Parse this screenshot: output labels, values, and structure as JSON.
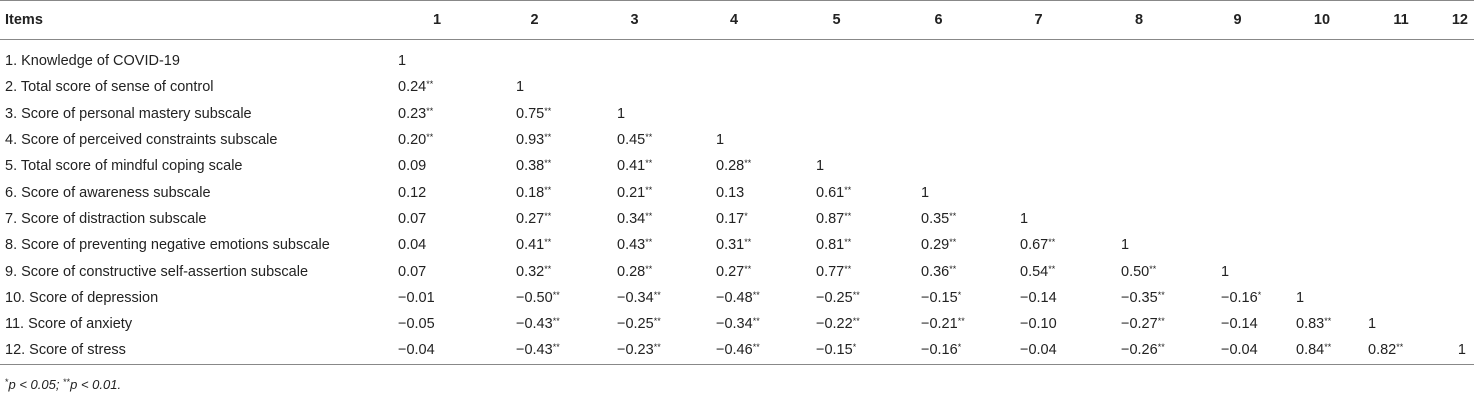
{
  "table": {
    "items_header": "Items",
    "column_headers": [
      "1",
      "2",
      "3",
      "4",
      "5",
      "6",
      "7",
      "8",
      "9",
      "10",
      "11",
      "12"
    ],
    "rows": [
      {
        "label": "1. Knowledge of COVID-19",
        "cells": [
          {
            "v": "1",
            "s": ""
          }
        ]
      },
      {
        "label": "2. Total score of sense of control",
        "cells": [
          {
            "v": "0.24",
            "s": "**"
          },
          {
            "v": "1",
            "s": ""
          }
        ]
      },
      {
        "label": "3. Score of personal mastery subscale",
        "cells": [
          {
            "v": "0.23",
            "s": "**"
          },
          {
            "v": "0.75",
            "s": "**"
          },
          {
            "v": "1",
            "s": ""
          }
        ]
      },
      {
        "label": "4. Score of perceived constraints subscale",
        "cells": [
          {
            "v": "0.20",
            "s": "**"
          },
          {
            "v": "0.93",
            "s": "**"
          },
          {
            "v": "0.45",
            "s": "**"
          },
          {
            "v": "1",
            "s": ""
          }
        ]
      },
      {
        "label": "5. Total score of mindful coping scale",
        "cells": [
          {
            "v": "0.09",
            "s": ""
          },
          {
            "v": "0.38",
            "s": "**"
          },
          {
            "v": "0.41",
            "s": "**"
          },
          {
            "v": "0.28",
            "s": "**"
          },
          {
            "v": "1",
            "s": ""
          }
        ]
      },
      {
        "label": "6. Score of awareness subscale",
        "cells": [
          {
            "v": "0.12",
            "s": ""
          },
          {
            "v": "0.18",
            "s": "**"
          },
          {
            "v": "0.21",
            "s": "**"
          },
          {
            "v": "0.13",
            "s": ""
          },
          {
            "v": "0.61",
            "s": "**"
          },
          {
            "v": "1",
            "s": ""
          }
        ]
      },
      {
        "label": "7. Score of distraction subscale",
        "cells": [
          {
            "v": "0.07",
            "s": ""
          },
          {
            "v": "0.27",
            "s": "**"
          },
          {
            "v": "0.34",
            "s": "**"
          },
          {
            "v": "0.17",
            "s": "*"
          },
          {
            "v": "0.87",
            "s": "**"
          },
          {
            "v": "0.35",
            "s": "**"
          },
          {
            "v": "1",
            "s": ""
          }
        ]
      },
      {
        "label": "8. Score of preventing negative emotions subscale",
        "cells": [
          {
            "v": "0.04",
            "s": ""
          },
          {
            "v": "0.41",
            "s": "**"
          },
          {
            "v": "0.43",
            "s": "**"
          },
          {
            "v": "0.31",
            "s": "**"
          },
          {
            "v": "0.81",
            "s": "**"
          },
          {
            "v": "0.29",
            "s": "**"
          },
          {
            "v": "0.67",
            "s": "**"
          },
          {
            "v": "1",
            "s": ""
          }
        ]
      },
      {
        "label": "9. Score of constructive self-assertion subscale",
        "cells": [
          {
            "v": "0.07",
            "s": ""
          },
          {
            "v": "0.32",
            "s": "**"
          },
          {
            "v": "0.28",
            "s": "**"
          },
          {
            "v": "0.27",
            "s": "**"
          },
          {
            "v": "0.77",
            "s": "**"
          },
          {
            "v": "0.36",
            "s": "**"
          },
          {
            "v": "0.54",
            "s": "**"
          },
          {
            "v": "0.50",
            "s": "**"
          },
          {
            "v": "1",
            "s": ""
          }
        ]
      },
      {
        "label": "10. Score of depression",
        "cells": [
          {
            "v": "−0.01",
            "s": ""
          },
          {
            "v": "−0.50",
            "s": "**"
          },
          {
            "v": "−0.34",
            "s": "**"
          },
          {
            "v": "−0.48",
            "s": "**"
          },
          {
            "v": "−0.25",
            "s": "**"
          },
          {
            "v": "−0.15",
            "s": "*"
          },
          {
            "v": "−0.14",
            "s": ""
          },
          {
            "v": "−0.35",
            "s": "**"
          },
          {
            "v": "−0.16",
            "s": "*"
          },
          {
            "v": "1",
            "s": ""
          }
        ]
      },
      {
        "label": "11. Score of anxiety",
        "cells": [
          {
            "v": "−0.05",
            "s": ""
          },
          {
            "v": "−0.43",
            "s": "**"
          },
          {
            "v": "−0.25",
            "s": "**"
          },
          {
            "v": "−0.34",
            "s": "**"
          },
          {
            "v": "−0.22",
            "s": "**"
          },
          {
            "v": "−0.21",
            "s": "**"
          },
          {
            "v": "−0.10",
            "s": ""
          },
          {
            "v": "−0.27",
            "s": "**"
          },
          {
            "v": "−0.14",
            "s": ""
          },
          {
            "v": "0.83",
            "s": "**"
          },
          {
            "v": "1",
            "s": ""
          }
        ]
      },
      {
        "label": "12. Score of stress",
        "cells": [
          {
            "v": "−0.04",
            "s": ""
          },
          {
            "v": "−0.43",
            "s": "**"
          },
          {
            "v": "−0.23",
            "s": "**"
          },
          {
            "v": "−0.46",
            "s": "**"
          },
          {
            "v": "−0.15",
            "s": "*"
          },
          {
            "v": "−0.16",
            "s": "*"
          },
          {
            "v": "−0.04",
            "s": ""
          },
          {
            "v": "−0.26",
            "s": "**"
          },
          {
            "v": "−0.04",
            "s": ""
          },
          {
            "v": "0.84",
            "s": "**"
          },
          {
            "v": "0.82",
            "s": "**"
          },
          {
            "v": "1",
            "s": ""
          }
        ]
      }
    ]
  },
  "footnote": {
    "sym1": "*",
    "text1": "p < 0.05; ",
    "sym2": "**",
    "text2": "p < 0.01."
  },
  "colors": {
    "text": "#222222",
    "rule": "#888888"
  }
}
